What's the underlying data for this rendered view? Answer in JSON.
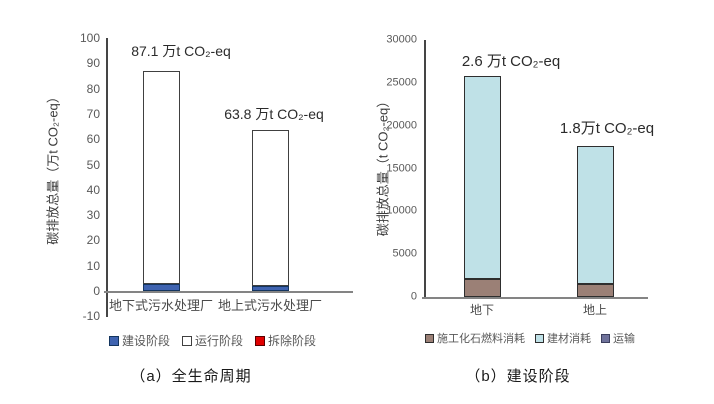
{
  "figure": {
    "background": "#ffffff",
    "axis_color": "#454545",
    "baseline_color": "#848484"
  },
  "chart_data": [
    {
      "id": "a",
      "type": "bar",
      "stacked": true,
      "caption": "（a）全生命周期",
      "ylabel": "碳排放总量（万t CO₂-eq）",
      "ylim": [
        -10,
        100
      ],
      "yticks": [
        100,
        90,
        80,
        70,
        60,
        50,
        40,
        30,
        20,
        10,
        0,
        -10
      ],
      "grid": false,
      "legend_position": "bottom",
      "categories": [
        "地下式污水处理厂",
        "地上式污水处理厂"
      ],
      "series": [
        {
          "key": "construction-phase",
          "name": "建设阶段",
          "color": "#3f63b0",
          "border": "#14355f",
          "values": [
            2.6,
            1.8
          ]
        },
        {
          "key": "operation-phase",
          "name": "运行阶段",
          "color": "#ffffff",
          "border": "#404040",
          "values": [
            84.5,
            62.0
          ]
        },
        {
          "key": "demolition-phase",
          "name": "拆除阶段",
          "color": "#e00000",
          "border": "#5a0000",
          "values": [
            0,
            0
          ]
        }
      ],
      "totals": [
        87.1,
        63.8
      ],
      "bar_labels": [
        "87.1 万t CO₂-eq",
        "63.8 万t CO₂-eq"
      ]
    },
    {
      "id": "b",
      "type": "bar",
      "stacked": true,
      "caption": "（b）建设阶段",
      "ylabel": "碳排放总量（t CO₂-eq）",
      "ylim": [
        0,
        30000
      ],
      "yticks": [
        30000,
        25000,
        20000,
        15000,
        10000,
        5000,
        0
      ],
      "grid": false,
      "legend_position": "bottom",
      "categories": [
        "地下",
        "地上"
      ],
      "series": [
        {
          "key": "construction-fossil-fuel",
          "name": "施工化石燃料消耗",
          "color": "#9b8076",
          "border": "#2e2e2e",
          "values": [
            2100,
            1500
          ]
        },
        {
          "key": "building-materials",
          "name": "建材消耗",
          "color": "#bfe1e7",
          "border": "#2e2e2e",
          "values": [
            23700,
            16100
          ]
        },
        {
          "key": "transport",
          "name": "运输",
          "color": "#6f729b",
          "border": "#3c3f5e",
          "values": [
            0,
            0
          ]
        }
      ],
      "totals": [
        25800,
        17600
      ],
      "bar_labels": [
        "2.6 万t CO₂-eq",
        "1.8万t CO₂-eq"
      ]
    }
  ]
}
